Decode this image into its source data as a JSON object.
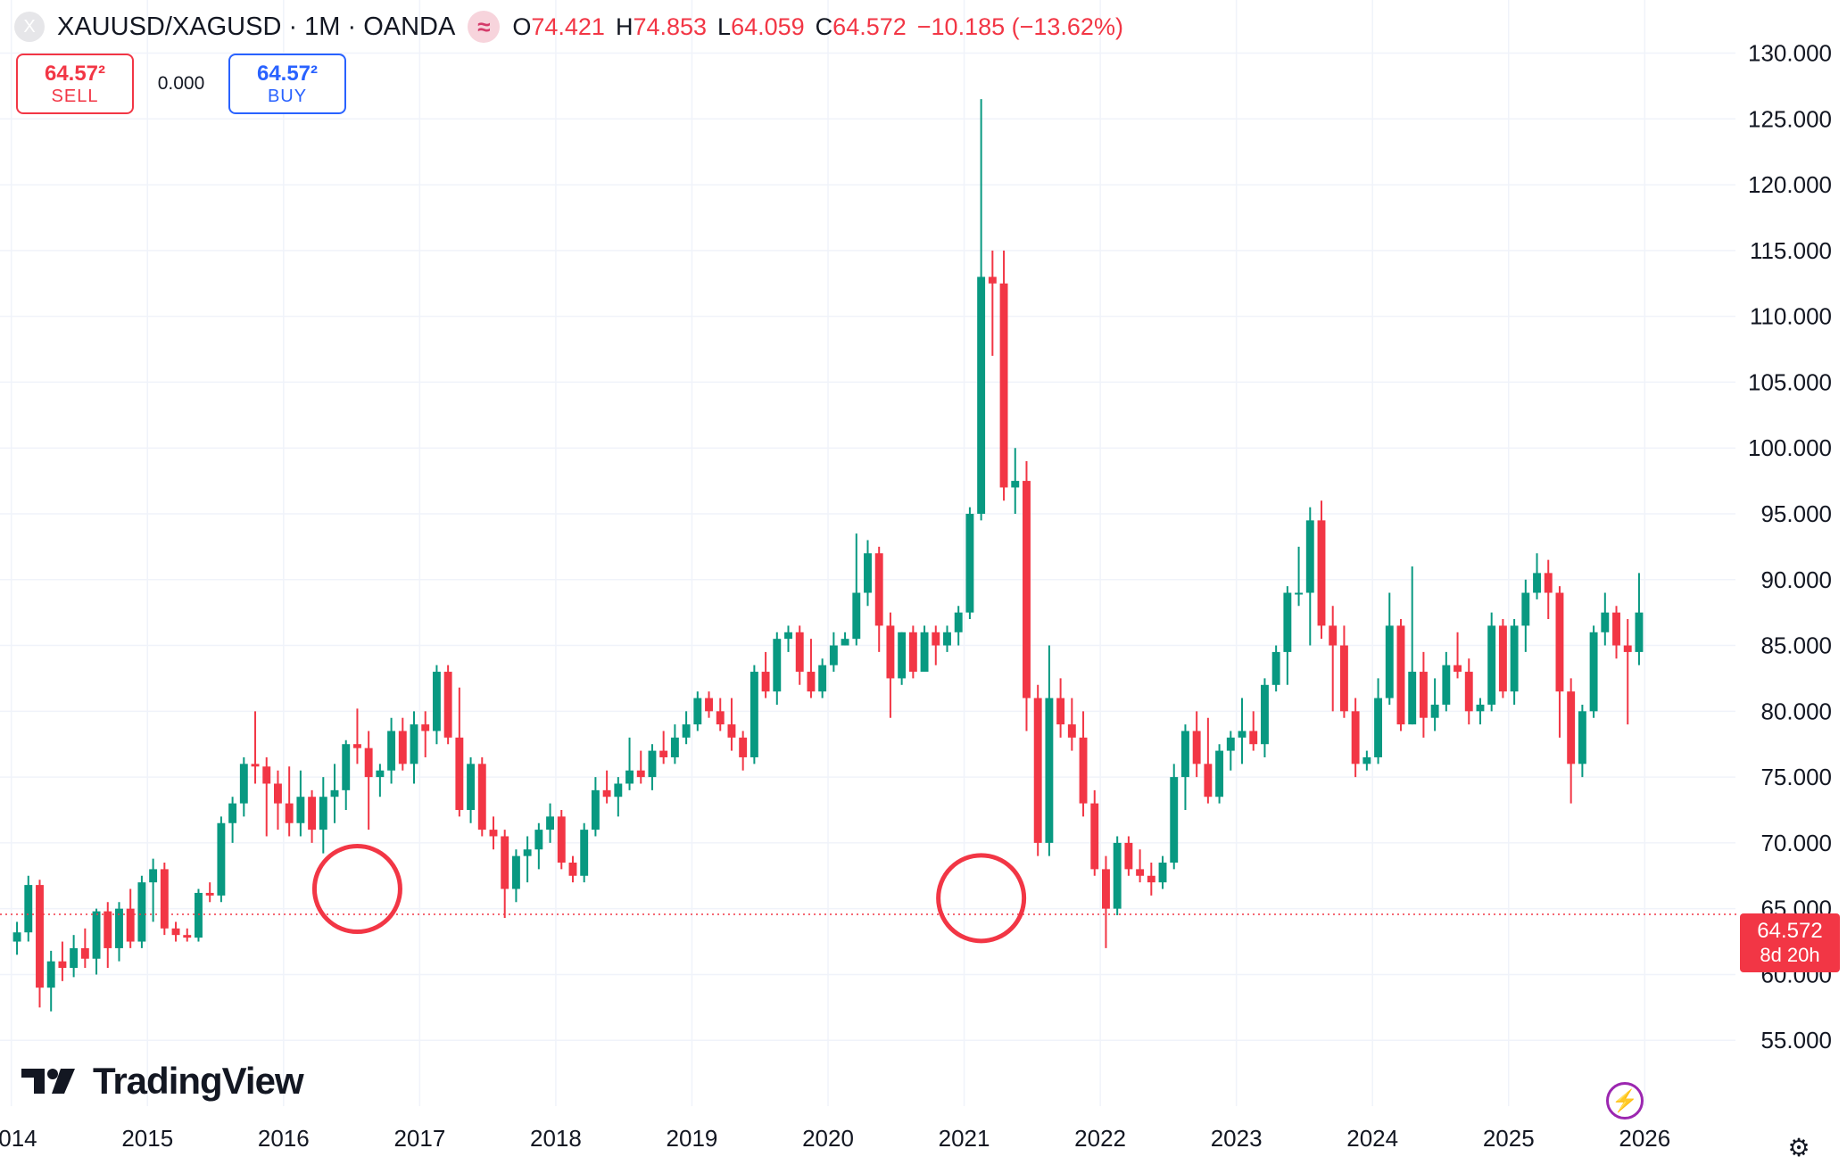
{
  "legend": {
    "symbol": "XAUUSD/XAGUSD · 1M · OANDA",
    "symbol_icon": "X",
    "indicator_icon": "≈",
    "o_key": "O",
    "o_val": "74.421",
    "h_key": "H",
    "h_val": "74.853",
    "l_key": "L",
    "l_val": "64.059",
    "c_key": "C",
    "c_val": "64.572",
    "change": "−10.185 (−13.62%)"
  },
  "trade": {
    "sell_price": "64.57²",
    "sell_label": "SELL",
    "spread": "0.000",
    "buy_price": "64.57²",
    "buy_label": "BUY"
  },
  "brand": {
    "name": "TradingView"
  },
  "current_price": {
    "value": "64.572",
    "countdown": "8d 20h"
  },
  "colors": {
    "up": "#089981",
    "down": "#f23645",
    "grid": "#f0f3fa",
    "annotation": "#f23645",
    "text": "#131722"
  },
  "icons": {
    "bolt": "lightning-bolt-icon",
    "settings": "settings-icon"
  },
  "chart_data": {
    "type": "candlestick",
    "interval": "1M",
    "ylim": [
      50,
      132
    ],
    "xlim": [
      "2013-12",
      "2026-08"
    ],
    "y_ticks": [
      "55.000",
      "60.000",
      "65.000",
      "70.000",
      "75.000",
      "80.000",
      "85.000",
      "90.000",
      "95.000",
      "100.000",
      "105.000",
      "110.000",
      "115.000",
      "120.000",
      "125.000",
      "130.000"
    ],
    "x_ticks": [
      "2014",
      "2015",
      "2016",
      "2017",
      "2018",
      "2019",
      "2020",
      "2021",
      "2022",
      "2023",
      "2024",
      "2025",
      "2026"
    ],
    "grid": true,
    "last_price_line": 64.572,
    "annotations": [
      {
        "type": "circle",
        "date": "2016-07",
        "price": 66.5
      },
      {
        "type": "circle",
        "date": "2021-02",
        "price": 65.8
      }
    ],
    "candles": [
      {
        "d": "2014-01",
        "o": 62.5,
        "h": 64.0,
        "l": 61.5,
        "c": 63.2
      },
      {
        "d": "2014-02",
        "o": 63.2,
        "h": 67.5,
        "l": 62.5,
        "c": 66.8
      },
      {
        "d": "2014-03",
        "o": 66.8,
        "h": 67.2,
        "l": 57.5,
        "c": 59.0
      },
      {
        "d": "2014-04",
        "o": 59.0,
        "h": 61.8,
        "l": 57.2,
        "c": 61.0
      },
      {
        "d": "2014-05",
        "o": 61.0,
        "h": 62.5,
        "l": 59.5,
        "c": 60.5
      },
      {
        "d": "2014-06",
        "o": 60.5,
        "h": 63.0,
        "l": 59.8,
        "c": 62.0
      },
      {
        "d": "2014-07",
        "o": 62.0,
        "h": 63.5,
        "l": 60.5,
        "c": 61.2
      },
      {
        "d": "2014-08",
        "o": 61.2,
        "h": 65.0,
        "l": 60.0,
        "c": 64.8
      },
      {
        "d": "2014-09",
        "o": 64.8,
        "h": 65.5,
        "l": 60.5,
        "c": 62.0
      },
      {
        "d": "2014-10",
        "o": 62.0,
        "h": 65.5,
        "l": 61.0,
        "c": 65.0
      },
      {
        "d": "2014-11",
        "o": 65.0,
        "h": 66.5,
        "l": 62.0,
        "c": 62.5
      },
      {
        "d": "2014-12",
        "o": 62.5,
        "h": 67.5,
        "l": 62.0,
        "c": 67.0
      },
      {
        "d": "2015-01",
        "o": 67.0,
        "h": 68.8,
        "l": 64.0,
        "c": 68.0
      },
      {
        "d": "2015-02",
        "o": 68.0,
        "h": 68.5,
        "l": 63.0,
        "c": 63.5
      },
      {
        "d": "2015-03",
        "o": 63.5,
        "h": 64.0,
        "l": 62.5,
        "c": 63.0
      },
      {
        "d": "2015-04",
        "o": 63.0,
        "h": 63.5,
        "l": 62.5,
        "c": 62.8
      },
      {
        "d": "2015-05",
        "o": 62.8,
        "h": 66.5,
        "l": 62.5,
        "c": 66.2
      },
      {
        "d": "2015-06",
        "o": 66.2,
        "h": 67.0,
        "l": 65.5,
        "c": 66.0
      },
      {
        "d": "2015-07",
        "o": 66.0,
        "h": 72.0,
        "l": 65.5,
        "c": 71.5
      },
      {
        "d": "2015-08",
        "o": 71.5,
        "h": 73.5,
        "l": 70.0,
        "c": 73.0
      },
      {
        "d": "2015-09",
        "o": 73.0,
        "h": 76.5,
        "l": 72.0,
        "c": 76.0
      },
      {
        "d": "2015-10",
        "o": 76.0,
        "h": 80.0,
        "l": 74.5,
        "c": 75.8
      },
      {
        "d": "2015-11",
        "o": 75.8,
        "h": 76.5,
        "l": 70.5,
        "c": 74.5
      },
      {
        "d": "2015-12",
        "o": 74.5,
        "h": 75.5,
        "l": 71.0,
        "c": 73.0
      },
      {
        "d": "2016-01",
        "o": 73.0,
        "h": 75.8,
        "l": 70.5,
        "c": 71.5
      },
      {
        "d": "2016-02",
        "o": 71.5,
        "h": 75.5,
        "l": 70.5,
        "c": 73.5
      },
      {
        "d": "2016-03",
        "o": 73.5,
        "h": 74.0,
        "l": 70.0,
        "c": 71.0
      },
      {
        "d": "2016-04",
        "o": 71.0,
        "h": 75.0,
        "l": 69.2,
        "c": 73.5
      },
      {
        "d": "2016-05",
        "o": 73.5,
        "h": 76.0,
        "l": 71.5,
        "c": 74.0
      },
      {
        "d": "2016-06",
        "o": 74.0,
        "h": 77.8,
        "l": 72.5,
        "c": 77.5
      },
      {
        "d": "2016-07",
        "o": 77.5,
        "h": 80.2,
        "l": 76.0,
        "c": 77.2
      },
      {
        "d": "2016-08",
        "o": 77.2,
        "h": 78.5,
        "l": 71.0,
        "c": 75.0
      },
      {
        "d": "2016-09",
        "o": 75.0,
        "h": 76.0,
        "l": 73.5,
        "c": 75.5
      },
      {
        "d": "2016-10",
        "o": 75.5,
        "h": 79.5,
        "l": 74.5,
        "c": 78.5
      },
      {
        "d": "2016-11",
        "o": 78.5,
        "h": 79.5,
        "l": 75.5,
        "c": 76.0
      },
      {
        "d": "2016-12",
        "o": 76.0,
        "h": 80.0,
        "l": 74.5,
        "c": 79.0
      },
      {
        "d": "2017-01",
        "o": 79.0,
        "h": 80.0,
        "l": 76.5,
        "c": 78.5
      },
      {
        "d": "2017-02",
        "o": 78.5,
        "h": 83.5,
        "l": 77.5,
        "c": 83.0
      },
      {
        "d": "2017-03",
        "o": 83.0,
        "h": 83.5,
        "l": 77.5,
        "c": 78.0
      },
      {
        "d": "2017-04",
        "o": 78.0,
        "h": 81.8,
        "l": 72.0,
        "c": 72.5
      },
      {
        "d": "2017-05",
        "o": 72.5,
        "h": 76.5,
        "l": 71.5,
        "c": 76.0
      },
      {
        "d": "2017-06",
        "o": 76.0,
        "h": 76.5,
        "l": 70.5,
        "c": 71.0
      },
      {
        "d": "2017-07",
        "o": 71.0,
        "h": 72.0,
        "l": 69.5,
        "c": 70.5
      },
      {
        "d": "2017-08",
        "o": 70.5,
        "h": 71.0,
        "l": 64.3,
        "c": 66.5
      },
      {
        "d": "2017-09",
        "o": 66.5,
        "h": 69.5,
        "l": 65.5,
        "c": 69.0
      },
      {
        "d": "2017-10",
        "o": 69.0,
        "h": 70.5,
        "l": 67.0,
        "c": 69.5
      },
      {
        "d": "2017-11",
        "o": 69.5,
        "h": 71.5,
        "l": 68.0,
        "c": 71.0
      },
      {
        "d": "2017-12",
        "o": 71.0,
        "h": 73.0,
        "l": 70.0,
        "c": 72.0
      },
      {
        "d": "2018-01",
        "o": 72.0,
        "h": 72.5,
        "l": 68.0,
        "c": 68.5
      },
      {
        "d": "2018-02",
        "o": 68.5,
        "h": 69.0,
        "l": 67.0,
        "c": 67.5
      },
      {
        "d": "2018-03",
        "o": 67.5,
        "h": 71.5,
        "l": 67.0,
        "c": 71.0
      },
      {
        "d": "2018-04",
        "o": 71.0,
        "h": 75.0,
        "l": 70.5,
        "c": 74.0
      },
      {
        "d": "2018-05",
        "o": 74.0,
        "h": 75.5,
        "l": 73.0,
        "c": 73.5
      },
      {
        "d": "2018-06",
        "o": 73.5,
        "h": 75.0,
        "l": 72.0,
        "c": 74.5
      },
      {
        "d": "2018-07",
        "o": 74.5,
        "h": 78.0,
        "l": 74.0,
        "c": 75.5
      },
      {
        "d": "2018-08",
        "o": 75.5,
        "h": 77.0,
        "l": 74.5,
        "c": 75.0
      },
      {
        "d": "2018-09",
        "o": 75.0,
        "h": 77.5,
        "l": 74.0,
        "c": 77.0
      },
      {
        "d": "2018-10",
        "o": 77.0,
        "h": 78.5,
        "l": 76.0,
        "c": 76.5
      },
      {
        "d": "2018-11",
        "o": 76.5,
        "h": 79.0,
        "l": 76.0,
        "c": 78.0
      },
      {
        "d": "2018-12",
        "o": 78.0,
        "h": 80.0,
        "l": 77.5,
        "c": 79.0
      },
      {
        "d": "2019-01",
        "o": 79.0,
        "h": 81.5,
        "l": 78.5,
        "c": 81.0
      },
      {
        "d": "2019-02",
        "o": 81.0,
        "h": 81.5,
        "l": 79.5,
        "c": 80.0
      },
      {
        "d": "2019-03",
        "o": 80.0,
        "h": 81.0,
        "l": 78.5,
        "c": 79.0
      },
      {
        "d": "2019-04",
        "o": 79.0,
        "h": 81.0,
        "l": 77.0,
        "c": 78.0
      },
      {
        "d": "2019-05",
        "o": 78.0,
        "h": 78.5,
        "l": 75.5,
        "c": 76.5
      },
      {
        "d": "2019-06",
        "o": 76.5,
        "h": 83.5,
        "l": 76.0,
        "c": 83.0
      },
      {
        "d": "2019-07",
        "o": 83.0,
        "h": 84.5,
        "l": 81.0,
        "c": 81.5
      },
      {
        "d": "2019-08",
        "o": 81.5,
        "h": 86.0,
        "l": 80.5,
        "c": 85.5
      },
      {
        "d": "2019-09",
        "o": 85.5,
        "h": 86.5,
        "l": 84.5,
        "c": 86.0
      },
      {
        "d": "2019-10",
        "o": 86.0,
        "h": 86.5,
        "l": 82.0,
        "c": 83.0
      },
      {
        "d": "2019-11",
        "o": 83.0,
        "h": 85.5,
        "l": 81.0,
        "c": 81.5
      },
      {
        "d": "2019-12",
        "o": 81.5,
        "h": 84.0,
        "l": 81.0,
        "c": 83.5
      },
      {
        "d": "2020-01",
        "o": 83.5,
        "h": 86.0,
        "l": 83.0,
        "c": 85.0
      },
      {
        "d": "2020-02",
        "o": 85.0,
        "h": 86.0,
        "l": 85.0,
        "c": 85.5
      },
      {
        "d": "2020-03",
        "o": 85.5,
        "h": 93.5,
        "l": 85.0,
        "c": 89.0
      },
      {
        "d": "2020-04",
        "o": 89.0,
        "h": 93.0,
        "l": 88.0,
        "c": 92.0
      },
      {
        "d": "2020-05",
        "o": 92.0,
        "h": 92.5,
        "l": 84.5,
        "c": 86.5
      },
      {
        "d": "2020-06",
        "o": 86.5,
        "h": 87.5,
        "l": 79.5,
        "c": 82.5
      },
      {
        "d": "2020-07",
        "o": 82.5,
        "h": 86.0,
        "l": 82.0,
        "c": 86.0
      },
      {
        "d": "2020-08",
        "o": 86.0,
        "h": 86.5,
        "l": 82.5,
        "c": 83.0
      },
      {
        "d": "2020-09",
        "o": 83.0,
        "h": 86.5,
        "l": 83.0,
        "c": 86.0
      },
      {
        "d": "2020-10",
        "o": 86.0,
        "h": 86.5,
        "l": 83.5,
        "c": 85.0
      },
      {
        "d": "2020-11",
        "o": 85.0,
        "h": 86.5,
        "l": 84.5,
        "c": 86.0
      },
      {
        "d": "2020-12",
        "o": 86.0,
        "h": 88.0,
        "l": 85.0,
        "c": 87.5
      },
      {
        "d": "2021-01",
        "o": 87.5,
        "h": 95.5,
        "l": 87.0,
        "c": 95.0
      },
      {
        "d": "2021-02",
        "o": 95.0,
        "h": 126.5,
        "l": 94.5,
        "c": 113.0
      },
      {
        "d": "2021-03",
        "o": 113.0,
        "h": 115.0,
        "l": 107.0,
        "c": 112.5
      },
      {
        "d": "2021-04",
        "o": 112.5,
        "h": 115.0,
        "l": 96.0,
        "c": 97.0
      },
      {
        "d": "2021-05",
        "o": 97.0,
        "h": 100.0,
        "l": 95.0,
        "c": 97.5
      },
      {
        "d": "2021-06",
        "o": 97.5,
        "h": 99.0,
        "l": 78.5,
        "c": 81.0
      },
      {
        "d": "2021-07",
        "o": 81.0,
        "h": 82.0,
        "l": 69.0,
        "c": 70.0
      },
      {
        "d": "2021-08",
        "o": 70.0,
        "h": 85.0,
        "l": 69.0,
        "c": 81.0
      },
      {
        "d": "2021-09",
        "o": 81.0,
        "h": 82.5,
        "l": 78.0,
        "c": 79.0
      },
      {
        "d": "2021-10",
        "o": 79.0,
        "h": 81.0,
        "l": 77.0,
        "c": 78.0
      },
      {
        "d": "2021-11",
        "o": 78.0,
        "h": 80.0,
        "l": 72.0,
        "c": 73.0
      },
      {
        "d": "2021-12",
        "o": 73.0,
        "h": 74.0,
        "l": 67.5,
        "c": 68.0
      },
      {
        "d": "2022-01",
        "o": 68.0,
        "h": 69.0,
        "l": 62.0,
        "c": 65.0
      },
      {
        "d": "2022-02",
        "o": 65.0,
        "h": 70.5,
        "l": 64.5,
        "c": 70.0
      },
      {
        "d": "2022-03",
        "o": 70.0,
        "h": 70.5,
        "l": 67.5,
        "c": 68.0
      },
      {
        "d": "2022-04",
        "o": 68.0,
        "h": 69.5,
        "l": 67.0,
        "c": 67.5
      },
      {
        "d": "2022-05",
        "o": 67.5,
        "h": 68.5,
        "l": 66.0,
        "c": 67.0
      },
      {
        "d": "2022-06",
        "o": 67.0,
        "h": 69.0,
        "l": 66.5,
        "c": 68.5
      },
      {
        "d": "2022-07",
        "o": 68.5,
        "h": 76.0,
        "l": 68.0,
        "c": 75.0
      },
      {
        "d": "2022-08",
        "o": 75.0,
        "h": 79.0,
        "l": 72.5,
        "c": 78.5
      },
      {
        "d": "2022-09",
        "o": 78.5,
        "h": 80.0,
        "l": 75.0,
        "c": 76.0
      },
      {
        "d": "2022-10",
        "o": 76.0,
        "h": 79.5,
        "l": 73.0,
        "c": 73.5
      },
      {
        "d": "2022-11",
        "o": 73.5,
        "h": 77.5,
        "l": 73.0,
        "c": 77.0
      },
      {
        "d": "2022-12",
        "o": 77.0,
        "h": 78.5,
        "l": 75.5,
        "c": 78.0
      },
      {
        "d": "2023-01",
        "o": 78.0,
        "h": 81.0,
        "l": 76.0,
        "c": 78.5
      },
      {
        "d": "2023-02",
        "o": 78.5,
        "h": 80.0,
        "l": 77.0,
        "c": 77.5
      },
      {
        "d": "2023-03",
        "o": 77.5,
        "h": 82.5,
        "l": 76.5,
        "c": 82.0
      },
      {
        "d": "2023-04",
        "o": 82.0,
        "h": 85.0,
        "l": 81.5,
        "c": 84.5
      },
      {
        "d": "2023-05",
        "o": 84.5,
        "h": 89.5,
        "l": 82.0,
        "c": 89.0
      },
      {
        "d": "2023-06",
        "o": 89.0,
        "h": 92.5,
        "l": 88.0,
        "c": 89.0
      },
      {
        "d": "2023-07",
        "o": 89.0,
        "h": 95.5,
        "l": 85.0,
        "c": 94.5
      },
      {
        "d": "2023-08",
        "o": 94.5,
        "h": 96.0,
        "l": 85.5,
        "c": 86.5
      },
      {
        "d": "2023-09",
        "o": 86.5,
        "h": 88.0,
        "l": 80.0,
        "c": 85.0
      },
      {
        "d": "2023-10",
        "o": 85.0,
        "h": 86.5,
        "l": 79.5,
        "c": 80.0
      },
      {
        "d": "2023-11",
        "o": 80.0,
        "h": 81.0,
        "l": 75.0,
        "c": 76.0
      },
      {
        "d": "2023-12",
        "o": 76.0,
        "h": 77.0,
        "l": 75.5,
        "c": 76.5
      },
      {
        "d": "2024-01",
        "o": 76.5,
        "h": 82.5,
        "l": 76.0,
        "c": 81.0
      },
      {
        "d": "2024-02",
        "o": 81.0,
        "h": 89.0,
        "l": 80.5,
        "c": 86.5
      },
      {
        "d": "2024-03",
        "o": 86.5,
        "h": 87.0,
        "l": 78.5,
        "c": 79.0
      },
      {
        "d": "2024-04",
        "o": 79.0,
        "h": 91.0,
        "l": 79.0,
        "c": 83.0
      },
      {
        "d": "2024-05",
        "o": 83.0,
        "h": 84.5,
        "l": 78.0,
        "c": 79.5
      },
      {
        "d": "2024-06",
        "o": 79.5,
        "h": 82.5,
        "l": 78.5,
        "c": 80.5
      },
      {
        "d": "2024-07",
        "o": 80.5,
        "h": 84.5,
        "l": 80.0,
        "c": 83.5
      },
      {
        "d": "2024-08",
        "o": 83.5,
        "h": 86.0,
        "l": 82.5,
        "c": 83.0
      },
      {
        "d": "2024-09",
        "o": 83.0,
        "h": 84.0,
        "l": 79.0,
        "c": 80.0
      },
      {
        "d": "2024-10",
        "o": 80.0,
        "h": 81.0,
        "l": 79.0,
        "c": 80.5
      },
      {
        "d": "2024-11",
        "o": 80.5,
        "h": 87.5,
        "l": 80.0,
        "c": 86.5
      },
      {
        "d": "2024-12",
        "o": 86.5,
        "h": 87.0,
        "l": 81.0,
        "c": 81.5
      },
      {
        "d": "2025-01",
        "o": 81.5,
        "h": 87.0,
        "l": 80.5,
        "c": 86.5
      },
      {
        "d": "2025-02",
        "o": 86.5,
        "h": 90.0,
        "l": 84.5,
        "c": 89.0
      },
      {
        "d": "2025-03",
        "o": 89.0,
        "h": 92.0,
        "l": 88.5,
        "c": 90.5
      },
      {
        "d": "2025-04",
        "o": 90.5,
        "h": 91.5,
        "l": 87.0,
        "c": 89.0
      },
      {
        "d": "2025-05",
        "o": 89.0,
        "h": 89.5,
        "l": 78.0,
        "c": 81.5
      },
      {
        "d": "2025-06",
        "o": 81.5,
        "h": 82.5,
        "l": 73.0,
        "c": 76.0
      },
      {
        "d": "2025-07",
        "o": 76.0,
        "h": 80.5,
        "l": 75.0,
        "c": 80.0
      },
      {
        "d": "2025-08",
        "o": 80.0,
        "h": 86.5,
        "l": 79.5,
        "c": 86.0
      },
      {
        "d": "2025-09",
        "o": 86.0,
        "h": 89.0,
        "l": 85.0,
        "c": 87.5
      },
      {
        "d": "2025-10",
        "o": 87.5,
        "h": 88.0,
        "l": 84.0,
        "c": 85.0
      },
      {
        "d": "2025-11",
        "o": 85.0,
        "h": 87.0,
        "l": 79.0,
        "c": 84.5
      },
      {
        "d": "2025-12",
        "o": 84.5,
        "h": 90.5,
        "l": 83.5,
        "c": 87.5
      }
    ]
  }
}
